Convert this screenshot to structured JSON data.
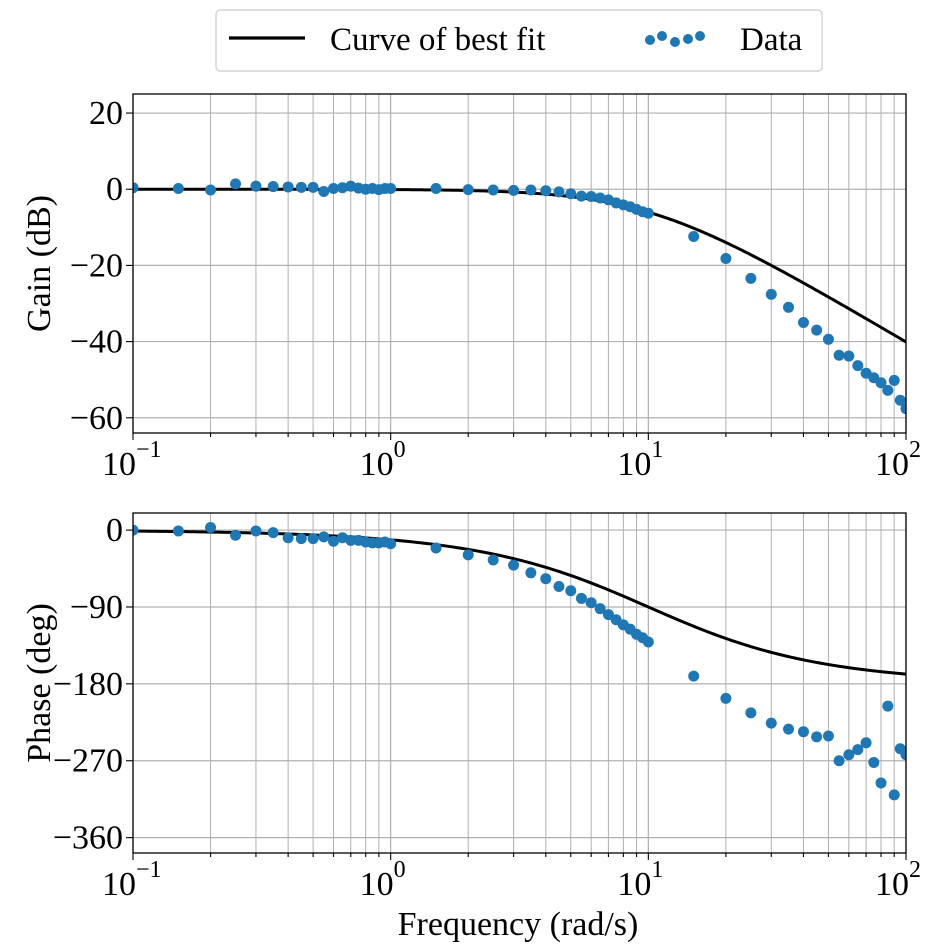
{
  "colors": {
    "data": "#1f77b4",
    "fit": "#000000",
    "grid": "#b0b0b0"
  },
  "legend": {
    "fit_label": "Curve of best fit",
    "data_label": "Data",
    "location": "top-center"
  },
  "chart_data": [
    {
      "type": "scatter",
      "name": "gain",
      "title": "",
      "xlabel": "",
      "ylabel": "Gain (dB)",
      "xscale": "log",
      "xlim": [
        0.1,
        100
      ],
      "ylim": [
        -64,
        25
      ],
      "yticks": [
        20,
        0,
        -20,
        -40,
        -60
      ],
      "ytick_labels": [
        "20",
        "0",
        "−20",
        "−40",
        "−60"
      ],
      "xtick_bases": [
        "10",
        "10",
        "10",
        "10"
      ],
      "xtick_exps": [
        "−1",
        "0",
        "1",
        "2"
      ],
      "grid": true,
      "series": [
        {
          "name": "Data",
          "style": "markers",
          "points": [
            [
              0.1,
              0.4
            ],
            [
              0.15,
              0.2
            ],
            [
              0.2,
              -0.2
            ],
            [
              0.25,
              1.4
            ],
            [
              0.3,
              0.8
            ],
            [
              0.35,
              0.7
            ],
            [
              0.4,
              0.6
            ],
            [
              0.45,
              0.5
            ],
            [
              0.5,
              0.5
            ],
            [
              0.55,
              -0.6
            ],
            [
              0.6,
              0.2
            ],
            [
              0.65,
              0.4
            ],
            [
              0.7,
              0.8
            ],
            [
              0.75,
              0.3
            ],
            [
              0.8,
              0.0
            ],
            [
              0.85,
              0.2
            ],
            [
              0.9,
              -0.1
            ],
            [
              0.95,
              0.2
            ],
            [
              1.0,
              0.2
            ],
            [
              1.5,
              0.2
            ],
            [
              2.0,
              -0.1
            ],
            [
              2.5,
              -0.2
            ],
            [
              3.0,
              -0.3
            ],
            [
              3.5,
              -0.2
            ],
            [
              4.0,
              -0.4
            ],
            [
              4.5,
              -0.7
            ],
            [
              5.0,
              -1.2
            ],
            [
              5.5,
              -1.8
            ],
            [
              6.0,
              -1.9
            ],
            [
              6.5,
              -2.3
            ],
            [
              7.0,
              -2.8
            ],
            [
              7.5,
              -3.6
            ],
            [
              8.0,
              -4.1
            ],
            [
              8.5,
              -4.6
            ],
            [
              9.0,
              -5.3
            ],
            [
              9.5,
              -5.9
            ],
            [
              10.0,
              -6.3
            ],
            [
              15,
              -12.4
            ],
            [
              20,
              -18.2
            ],
            [
              25,
              -23.4
            ],
            [
              30,
              -27.6
            ],
            [
              35,
              -31.0
            ],
            [
              40,
              -35.0
            ],
            [
              45,
              -37.0
            ],
            [
              50,
              -39.4
            ],
            [
              55,
              -43.6
            ],
            [
              60,
              -43.8
            ],
            [
              65,
              -46.3
            ],
            [
              70,
              -48.3
            ],
            [
              75,
              -49.5
            ],
            [
              80,
              -50.8
            ],
            [
              85,
              -52.8
            ],
            [
              90,
              -50.2
            ],
            [
              95,
              -55.4
            ],
            [
              100,
              -57.6
            ]
          ]
        },
        {
          "name": "Curve of best fit",
          "style": "line",
          "model": "second-order low-pass, wn = 10 rad/s, zeta = 1, gain 0 dB"
        }
      ]
    },
    {
      "type": "scatter",
      "name": "phase",
      "title": "",
      "xlabel": "Frequency (rad/s)",
      "ylabel": "Phase (deg)",
      "xscale": "log",
      "xlim": [
        0.1,
        100
      ],
      "ylim": [
        -378,
        20
      ],
      "yticks": [
        0,
        -90,
        -180,
        -270,
        -360
      ],
      "ytick_labels": [
        "0",
        "−90",
        "−180",
        "−270",
        "−360"
      ],
      "xtick_bases": [
        "10",
        "10",
        "10",
        "10"
      ],
      "xtick_exps": [
        "−1",
        "0",
        "1",
        "2"
      ],
      "grid": true,
      "series": [
        {
          "name": "Data",
          "style": "markers",
          "points": [
            [
              0.1,
              0
            ],
            [
              0.15,
              -1
            ],
            [
              0.2,
              3
            ],
            [
              0.25,
              -6
            ],
            [
              0.3,
              -1
            ],
            [
              0.35,
              -3
            ],
            [
              0.4,
              -9
            ],
            [
              0.45,
              -10
            ],
            [
              0.5,
              -10
            ],
            [
              0.55,
              -8
            ],
            [
              0.6,
              -13
            ],
            [
              0.65,
              -9
            ],
            [
              0.7,
              -12
            ],
            [
              0.75,
              -12
            ],
            [
              0.8,
              -14
            ],
            [
              0.85,
              -15
            ],
            [
              0.9,
              -15
            ],
            [
              0.95,
              -14
            ],
            [
              1.0,
              -16
            ],
            [
              1.5,
              -21
            ],
            [
              2.0,
              -29
            ],
            [
              2.5,
              -35
            ],
            [
              3.0,
              -41
            ],
            [
              3.5,
              -50
            ],
            [
              4.0,
              -57
            ],
            [
              4.5,
              -66
            ],
            [
              5.0,
              -71
            ],
            [
              5.5,
              -80
            ],
            [
              6.0,
              -85
            ],
            [
              6.5,
              -92
            ],
            [
              7.0,
              -99
            ],
            [
              7.5,
              -105
            ],
            [
              8.0,
              -111
            ],
            [
              8.5,
              -116
            ],
            [
              9.0,
              -122
            ],
            [
              9.5,
              -126
            ],
            [
              10.0,
              -131
            ],
            [
              15,
              -171
            ],
            [
              20,
              -197
            ],
            [
              25,
              -214
            ],
            [
              30,
              -226
            ],
            [
              35,
              -233
            ],
            [
              40,
              -236
            ],
            [
              45,
              -242
            ],
            [
              50,
              -241
            ],
            [
              55,
              -270
            ],
            [
              60,
              -263
            ],
            [
              65,
              -257
            ],
            [
              70,
              -249
            ],
            [
              75,
              -272
            ],
            [
              80,
              -296
            ],
            [
              85,
              -206
            ],
            [
              90,
              -310
            ],
            [
              95,
              -256
            ],
            [
              100,
              -263
            ]
          ]
        },
        {
          "name": "Curve of best fit",
          "style": "line",
          "model": "second-order low-pass, wn = 10 rad/s, zeta = 1"
        }
      ]
    }
  ]
}
